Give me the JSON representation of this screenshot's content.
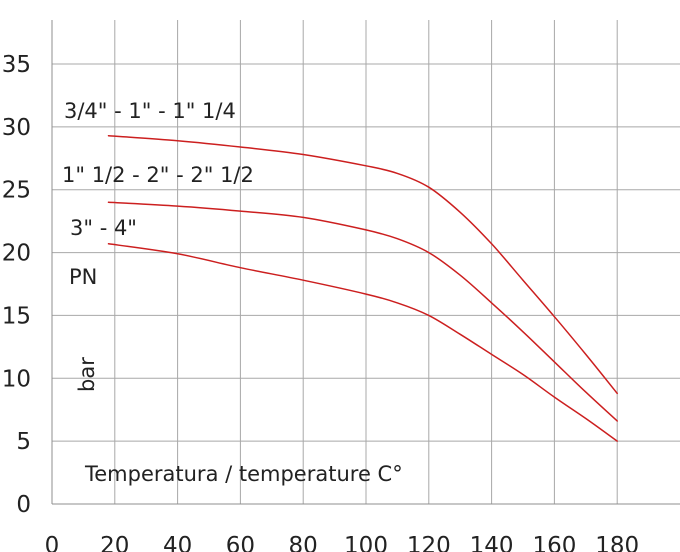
{
  "chart_data": {
    "type": "line",
    "x_ticks": [
      0,
      20,
      40,
      60,
      80,
      100,
      120,
      140,
      160,
      180
    ],
    "y_ticks": [
      0,
      5,
      10,
      15,
      20,
      25,
      30,
      35
    ],
    "xlim": [
      0,
      200
    ],
    "ylim": [
      0,
      38.5
    ],
    "grid": true,
    "line_color": "#cc1f1f",
    "series": [
      {
        "name": "3/4\" - 1\" - 1\" 1/4",
        "points": [
          [
            18,
            29.3
          ],
          [
            40,
            28.9
          ],
          [
            60,
            28.4
          ],
          [
            80,
            27.8
          ],
          [
            100,
            26.9
          ],
          [
            110,
            26.3
          ],
          [
            120,
            25.2
          ],
          [
            130,
            23.2
          ],
          [
            140,
            20.7
          ],
          [
            150,
            17.8
          ],
          [
            160,
            14.9
          ],
          [
            170,
            11.9
          ],
          [
            180,
            8.8
          ]
        ]
      },
      {
        "name": "1\" 1/2 - 2\" - 2\" 1/2",
        "points": [
          [
            18,
            24.0
          ],
          [
            40,
            23.7
          ],
          [
            60,
            23.3
          ],
          [
            80,
            22.8
          ],
          [
            100,
            21.8
          ],
          [
            110,
            21.1
          ],
          [
            120,
            20.0
          ],
          [
            130,
            18.2
          ],
          [
            140,
            16.0
          ],
          [
            150,
            13.7
          ],
          [
            160,
            11.3
          ],
          [
            170,
            8.9
          ],
          [
            180,
            6.6
          ]
        ]
      },
      {
        "name": "3\" - 4\"",
        "points": [
          [
            18,
            20.7
          ],
          [
            40,
            19.9
          ],
          [
            60,
            18.8
          ],
          [
            80,
            17.8
          ],
          [
            100,
            16.7
          ],
          [
            110,
            16.0
          ],
          [
            120,
            15.0
          ],
          [
            130,
            13.5
          ],
          [
            140,
            11.9
          ],
          [
            150,
            10.3
          ],
          [
            160,
            8.5
          ],
          [
            170,
            6.8
          ],
          [
            180,
            5.0
          ]
        ]
      }
    ],
    "annotations": {
      "pn": "PN",
      "ylabel": "bar",
      "xlabel": "Temperatura / temperature C°"
    }
  }
}
